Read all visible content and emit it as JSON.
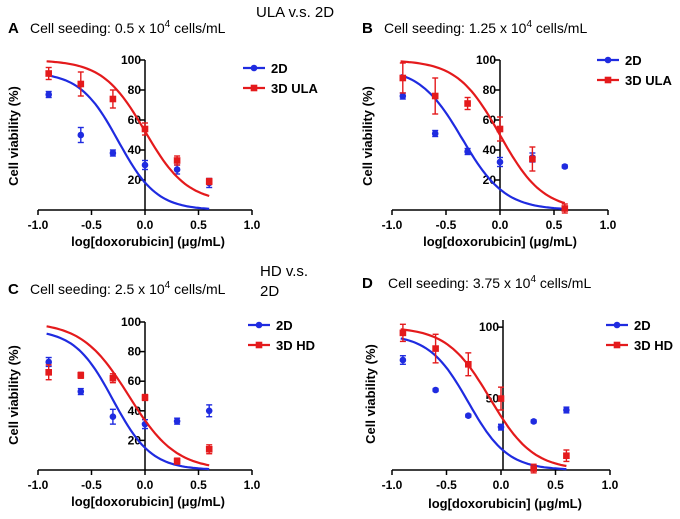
{
  "figure": {
    "top_title": "ULA v.s. 2D",
    "mid_title_line1": "HD v.s.",
    "mid_title_line2": "2D"
  },
  "colors": {
    "blue": "#1f2be0",
    "red": "#e41a1c",
    "axis": "#000000"
  },
  "chart_data": [
    {
      "type": "scatter",
      "letter": "A",
      "seeding_prefix": "Cell seeding: 0.5 x 10",
      "seeding_exp": "4",
      "seeding_suffix": " cells/mL",
      "xlabel": "log[doxorubicin] (μg/mL)",
      "ylabel": "Cell viability (%)",
      "xlim": [
        -1.0,
        1.0
      ],
      "ylim": [
        0,
        100
      ],
      "xticks": [
        "-1.0",
        "-0.5",
        "0.0",
        "0.5",
        "1.0"
      ],
      "yticks": [
        "20",
        "40",
        "60",
        "80",
        "100"
      ],
      "series": [
        {
          "name": "2D",
          "color": "#1f2be0",
          "marker": "circle",
          "x": [
            -0.9,
            -0.6,
            -0.3,
            0.0,
            0.3,
            0.6
          ],
          "y": [
            77,
            50,
            38,
            30,
            27,
            18
          ],
          "err": [
            2,
            5,
            2,
            3,
            3,
            3
          ],
          "fit": {
            "top": 92,
            "bottom": 0,
            "ic50": -0.25,
            "hill": 1.1
          }
        },
        {
          "name": "3D ULA",
          "color": "#e41a1c",
          "marker": "square",
          "x": [
            -0.9,
            -0.6,
            -0.3,
            0.0,
            0.3,
            0.6
          ],
          "y": [
            91,
            84,
            74,
            54,
            33,
            19
          ],
          "err": [
            4,
            8,
            6,
            4,
            3,
            2
          ],
          "fit": {
            "top": 100,
            "bottom": 5,
            "ic50": 0.0,
            "hill": 1.0
          }
        }
      ]
    },
    {
      "type": "scatter",
      "letter": "B",
      "seeding_prefix": "Cell seeding: 1.25 x 10",
      "seeding_exp": "4",
      "seeding_suffix": " cells/mL",
      "xlabel": "log[doxorubicin] (μg/mL)",
      "ylabel": "Cell viability (%)",
      "xlim": [
        -1.0,
        1.0
      ],
      "ylim": [
        0,
        100
      ],
      "xticks": [
        "-1.0",
        "-0.5",
        "0.0",
        "0.5",
        "1.0"
      ],
      "yticks": [
        "20",
        "40",
        "60",
        "80",
        "100"
      ],
      "series": [
        {
          "name": "2D",
          "color": "#1f2be0",
          "marker": "circle",
          "x": [
            -0.9,
            -0.6,
            -0.3,
            0.0,
            0.3,
            0.6
          ],
          "y": [
            76,
            51,
            39,
            32,
            35,
            29
          ],
          "err": [
            2,
            2,
            2,
            3,
            3,
            1
          ],
          "fit": {
            "top": 95,
            "bottom": 0,
            "ic50": -0.35,
            "hill": 1.0
          }
        },
        {
          "name": "3D ULA",
          "color": "#e41a1c",
          "marker": "square",
          "x": [
            -0.9,
            -0.6,
            -0.3,
            0.0,
            0.3,
            0.6
          ],
          "y": [
            88,
            76,
            71,
            54,
            34,
            1
          ],
          "err": [
            10,
            12,
            4,
            8,
            8,
            3
          ],
          "fit": {
            "top": 100,
            "bottom": 0,
            "ic50": 0.0,
            "hill": 1.0
          }
        }
      ]
    },
    {
      "type": "scatter",
      "letter": "C",
      "seeding_prefix": "Cell seeding: 2.5 x 10",
      "seeding_exp": "4",
      "seeding_suffix": " cells/mL",
      "xlabel": "log[doxorubicin] (μg/mL)",
      "ylabel": "Cell viability (%)",
      "xlim": [
        -1.0,
        1.0
      ],
      "ylim": [
        0,
        100
      ],
      "xticks": [
        "-1.0",
        "-0.5",
        "0.0",
        "0.5",
        "1.0"
      ],
      "yticks": [
        "20",
        "40",
        "60",
        "80",
        "100"
      ],
      "series": [
        {
          "name": "2D",
          "color": "#1f2be0",
          "marker": "circle",
          "x": [
            -0.9,
            -0.6,
            -0.3,
            0.0,
            0.3,
            0.6
          ],
          "y": [
            73,
            53,
            36,
            31,
            33,
            40
          ],
          "err": [
            3,
            2,
            5,
            3,
            2,
            4
          ],
          "fit": {
            "top": 95,
            "bottom": 0,
            "ic50": -0.3,
            "hill": 1.1
          }
        },
        {
          "name": "3D HD",
          "color": "#e41a1c",
          "marker": "square",
          "x": [
            -0.9,
            -0.6,
            -0.3,
            0.0,
            0.3,
            0.6
          ],
          "y": [
            66,
            64,
            62,
            49,
            6,
            14
          ],
          "err": [
            5,
            2,
            3,
            2,
            2,
            3
          ],
          "fit": {
            "top": 100,
            "bottom": 0,
            "ic50": -0.15,
            "hill": 0.9
          }
        }
      ]
    },
    {
      "type": "scatter",
      "letter": "D",
      "seeding_prefix": "Cell seeding: 3.75 x 10",
      "seeding_exp": "4",
      "seeding_suffix": " cells/mL",
      "xlabel": "log[doxorubicin] (μg/mL)",
      "ylabel": "Cell viability (%)",
      "xlim": [
        -1.0,
        1.0
      ],
      "ylim": [
        0,
        100
      ],
      "xticks": [
        "-1.0",
        "-0.5",
        "0.0",
        "0.5",
        "1.0"
      ],
      "yticks": [
        "50",
        "100"
      ],
      "series": [
        {
          "name": "2D",
          "color": "#1f2be0",
          "marker": "circle",
          "x": [
            -0.9,
            -0.6,
            -0.3,
            0.0,
            0.3,
            0.6
          ],
          "y": [
            77,
            56,
            38,
            30,
            34,
            42
          ],
          "err": [
            3,
            1,
            1,
            2,
            1,
            2
          ],
          "fit": {
            "top": 95,
            "bottom": 0,
            "ic50": -0.3,
            "hill": 1.1
          }
        },
        {
          "name": "3D HD",
          "color": "#e41a1c",
          "marker": "square",
          "x": [
            -0.9,
            -0.6,
            -0.3,
            0.0,
            0.3,
            0.6
          ],
          "y": [
            96,
            85,
            74,
            50,
            1,
            10
          ],
          "err": [
            6,
            10,
            8,
            8,
            3,
            4
          ],
          "fit": {
            "top": 100,
            "bottom": 0,
            "ic50": -0.1,
            "hill": 1.0
          }
        }
      ]
    }
  ]
}
